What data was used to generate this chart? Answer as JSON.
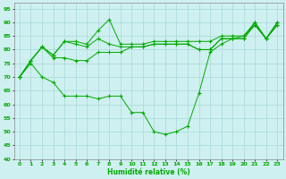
{
  "xlabel": "Humidité relative (%)",
  "bg_color": "#cff0f0",
  "grid_color": "#a8d8d8",
  "line_color": "#00aa00",
  "xlim": [
    -0.5,
    23.5
  ],
  "ylim": [
    40,
    97
  ],
  "yticks": [
    40,
    45,
    50,
    55,
    60,
    65,
    70,
    75,
    80,
    85,
    90,
    95
  ],
  "xticks": [
    0,
    1,
    2,
    3,
    4,
    5,
    6,
    7,
    8,
    9,
    10,
    11,
    12,
    13,
    14,
    15,
    16,
    17,
    18,
    19,
    20,
    21,
    22,
    23
  ],
  "series": [
    [
      70,
      76,
      81,
      78,
      83,
      83,
      82,
      87,
      91,
      82,
      82,
      82,
      83,
      83,
      83,
      83,
      83,
      83,
      85,
      85,
      85,
      90,
      84,
      90
    ],
    [
      70,
      76,
      81,
      78,
      83,
      82,
      81,
      84,
      82,
      81,
      81,
      81,
      82,
      82,
      82,
      82,
      80,
      80,
      84,
      84,
      84,
      89,
      84,
      89
    ],
    [
      70,
      76,
      81,
      77,
      77,
      76,
      76,
      79,
      79,
      79,
      81,
      81,
      82,
      82,
      82,
      82,
      80,
      80,
      84,
      84,
      85,
      89,
      84,
      89
    ],
    [
      70,
      75,
      70,
      68,
      63,
      63,
      63,
      62,
      63,
      63,
      57,
      57,
      50,
      49,
      50,
      52,
      64,
      79,
      82,
      84,
      84,
      90,
      84,
      90
    ]
  ]
}
